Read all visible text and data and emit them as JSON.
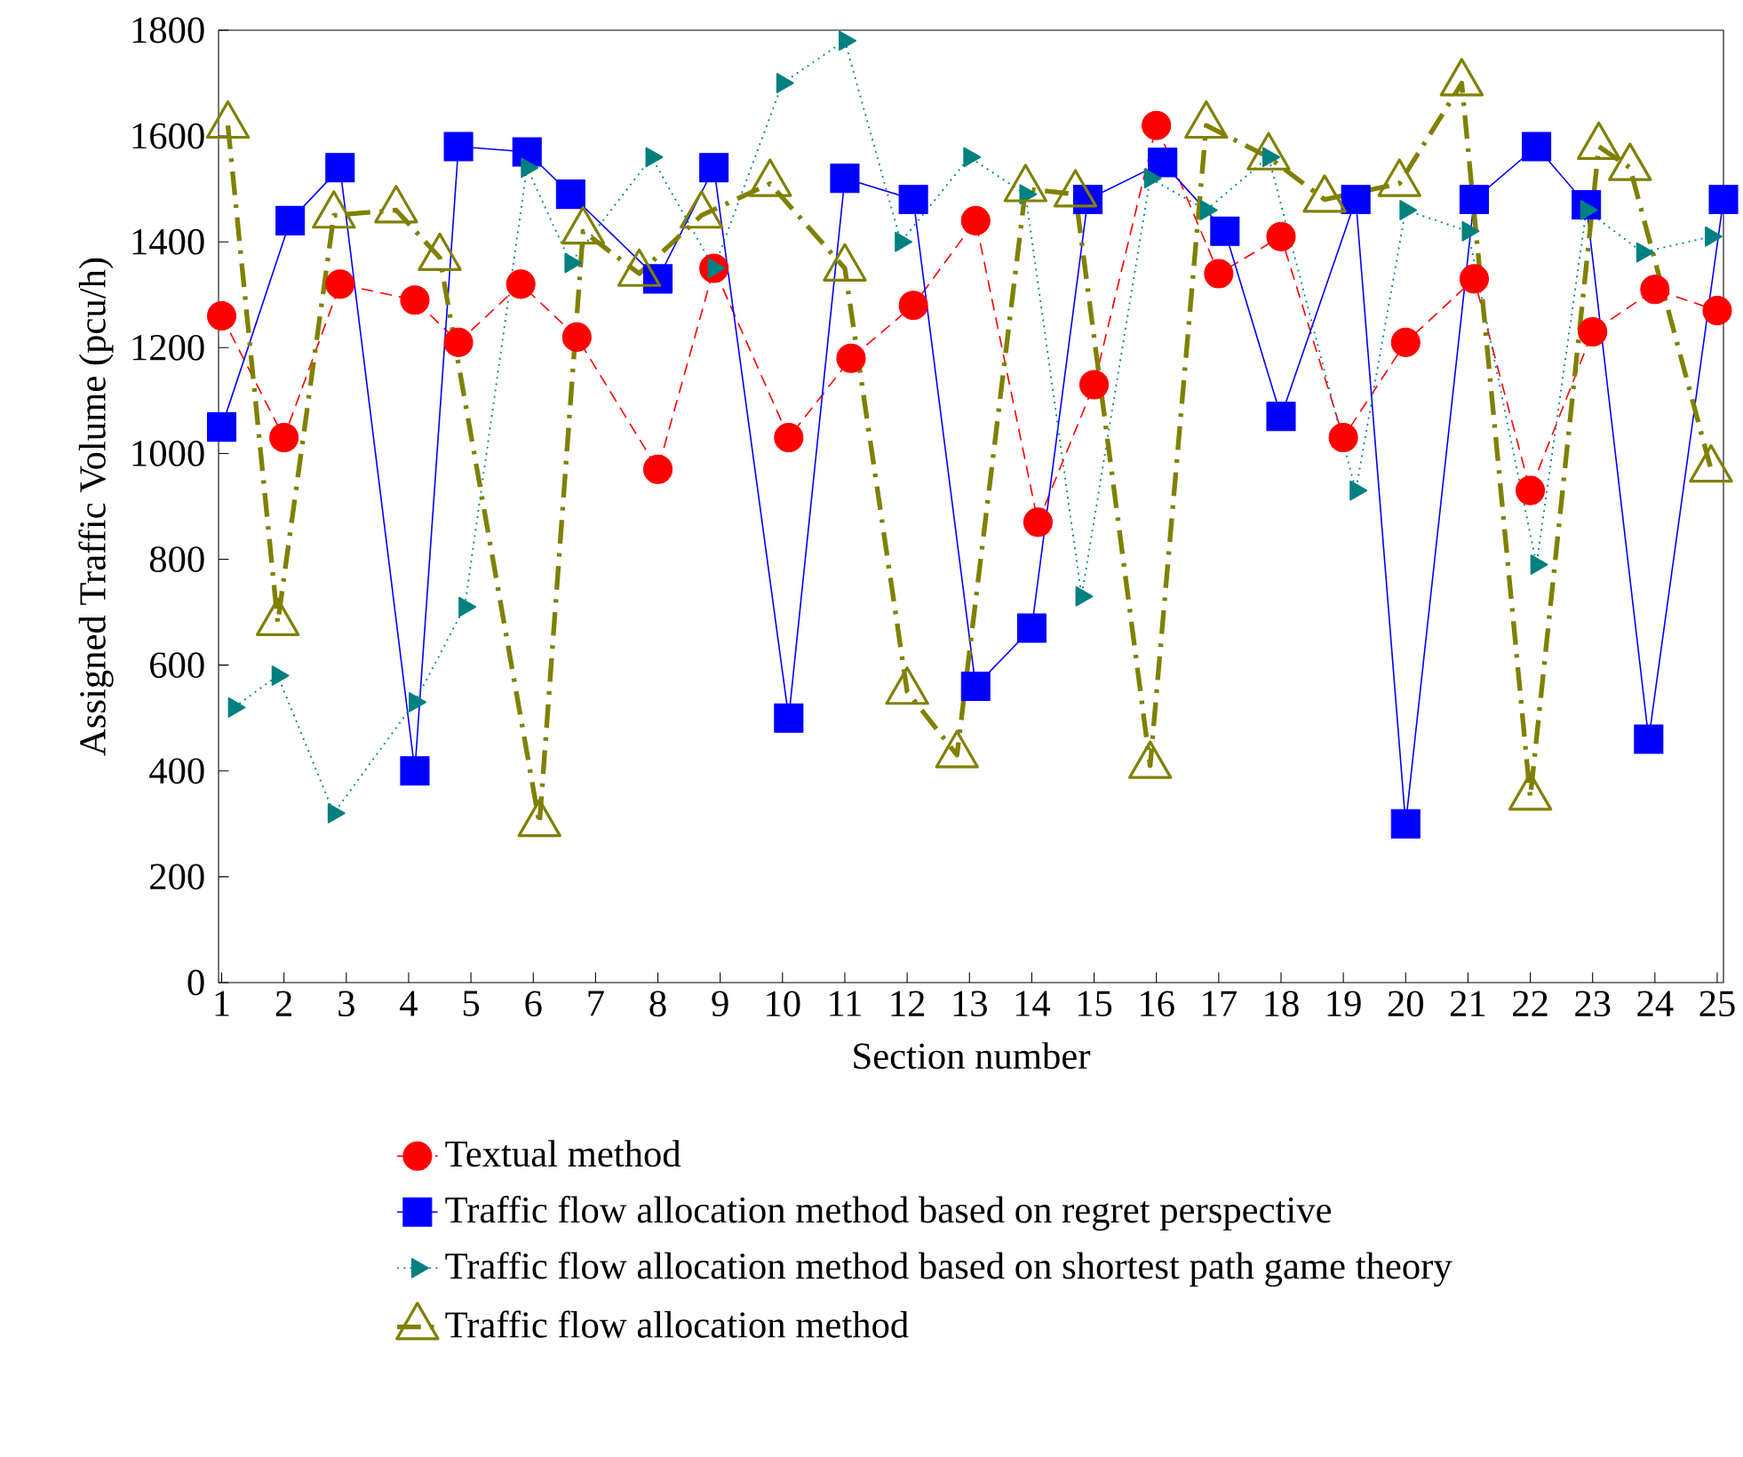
{
  "chart_data": {
    "type": "line",
    "xlabel": "Section number",
    "ylabel": "Assigned Traffic Volume (pcu/h)",
    "xlim": [
      0.95,
      25.1
    ],
    "ylim": [
      0,
      1800
    ],
    "xticks": [
      1,
      2,
      3,
      4,
      5,
      6,
      7,
      8,
      9,
      10,
      11,
      12,
      13,
      14,
      15,
      16,
      17,
      18,
      19,
      20,
      21,
      22,
      23,
      24,
      25
    ],
    "yticks": [
      0,
      200,
      400,
      600,
      800,
      1000,
      1200,
      1400,
      1600,
      1800
    ],
    "grid": false,
    "legend": "bottom",
    "series": [
      {
        "name": "Textual method",
        "color": "#ff0000",
        "marker": "circle",
        "line_style": "dashed",
        "x": [
          1,
          2,
          2.9,
          4.1,
          4.8,
          5.8,
          6.7,
          8,
          8.9,
          10.1,
          11.1,
          12.1,
          13.1,
          14.1,
          15,
          16,
          17,
          18,
          19,
          20,
          21.1,
          22,
          23,
          24,
          25
        ],
        "values": [
          1260,
          1030,
          1320,
          1290,
          1210,
          1320,
          1220,
          970,
          1350,
          1030,
          1180,
          1280,
          1440,
          870,
          1130,
          1620,
          1340,
          1410,
          1030,
          1210,
          1330,
          930,
          1230,
          1310,
          1270
        ]
      },
      {
        "name": "Traffic flow allocation method based on regret perspective",
        "color": "#0000ff",
        "marker": "square",
        "line_style": "solid",
        "x": [
          1,
          2.1,
          2.9,
          4.1,
          4.8,
          5.9,
          6.6,
          8,
          8.9,
          10.1,
          11,
          12.1,
          13.1,
          14,
          14.9,
          16.1,
          17.1,
          18,
          19.2,
          20,
          21.1,
          22.1,
          22.9,
          23.9,
          25.1
        ],
        "values": [
          1050,
          1440,
          1540,
          400,
          1580,
          1570,
          1490,
          1330,
          1540,
          500,
          1520,
          1480,
          560,
          670,
          1480,
          1550,
          1420,
          1070,
          1480,
          300,
          1480,
          1580,
          1470,
          460,
          1480
        ]
      },
      {
        "name": "Traffic flow allocation method based on shortest path game theory",
        "color": "#008080",
        "marker": "triangle",
        "line_style": "dotted",
        "x": [
          1.2,
          1.9,
          2.8,
          4.1,
          4.9,
          5.9,
          6.6,
          7.9,
          8.9,
          10,
          11,
          11.9,
          13,
          13.9,
          14.8,
          15.9,
          16.8,
          17.8,
          19.2,
          20,
          21,
          22.1,
          22.9,
          23.8,
          24.9
        ],
        "values": [
          520,
          580,
          320,
          530,
          710,
          1540,
          1360,
          1560,
          1350,
          1700,
          1780,
          1400,
          1560,
          1490,
          730,
          1520,
          1460,
          1560,
          930,
          1460,
          1420,
          790,
          1460,
          1380,
          1410
        ]
      },
      {
        "name": "Traffic flow allocation method",
        "color": "#808000",
        "marker": "triangle",
        "line_style": "dashdot",
        "x": [
          1.1,
          1.9,
          2.8,
          3.8,
          4.5,
          6.1,
          6.8,
          7.7,
          8.7,
          9.8,
          11,
          12,
          12.8,
          13.9,
          14.7,
          15.9,
          16.8,
          17.8,
          18.7,
          19.9,
          20.9,
          22,
          23.1,
          23.6,
          24.9
        ],
        "values": [
          1620,
          680,
          1450,
          1460,
          1370,
          300,
          1420,
          1340,
          1450,
          1510,
          1350,
          550,
          430,
          1500,
          1490,
          410,
          1620,
          1560,
          1480,
          1510,
          1700,
          350,
          1580,
          1540,
          970
        ]
      }
    ]
  }
}
